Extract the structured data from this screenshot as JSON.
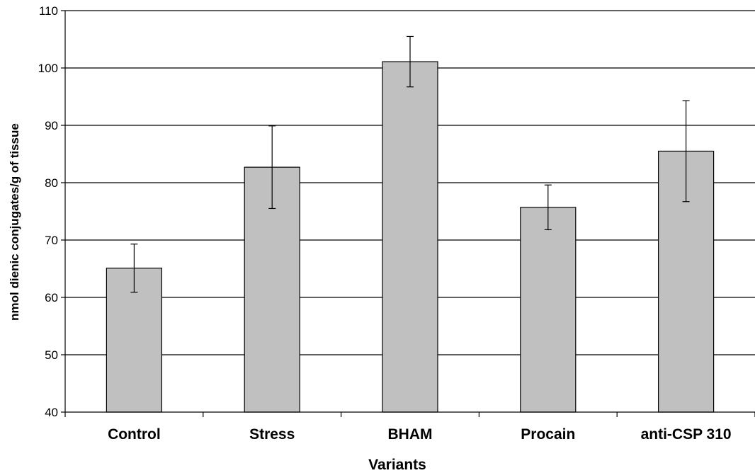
{
  "chart_data": {
    "type": "bar",
    "title": "",
    "xlabel": "Variants",
    "ylabel": "nmol dienic conjugates/g of tissue",
    "categories": [
      "Control",
      "Stress",
      "BHAM",
      "Procain",
      "anti-CSP 310"
    ],
    "values": [
      65.1,
      82.7,
      101.1,
      75.7,
      85.5
    ],
    "error_bars": [
      4.2,
      7.2,
      4.4,
      3.9,
      8.8
    ],
    "ylim": [
      40,
      110
    ],
    "yticks": [
      "40",
      "50",
      "60",
      "70",
      "80",
      "90",
      "100",
      "110"
    ],
    "grid": true,
    "legend": "none",
    "colors": {
      "bar_fill": "#c0c0c0",
      "bar_stroke": "#000000",
      "grid": "#000000",
      "axis": "#000000",
      "error_bar": "#000000"
    }
  }
}
